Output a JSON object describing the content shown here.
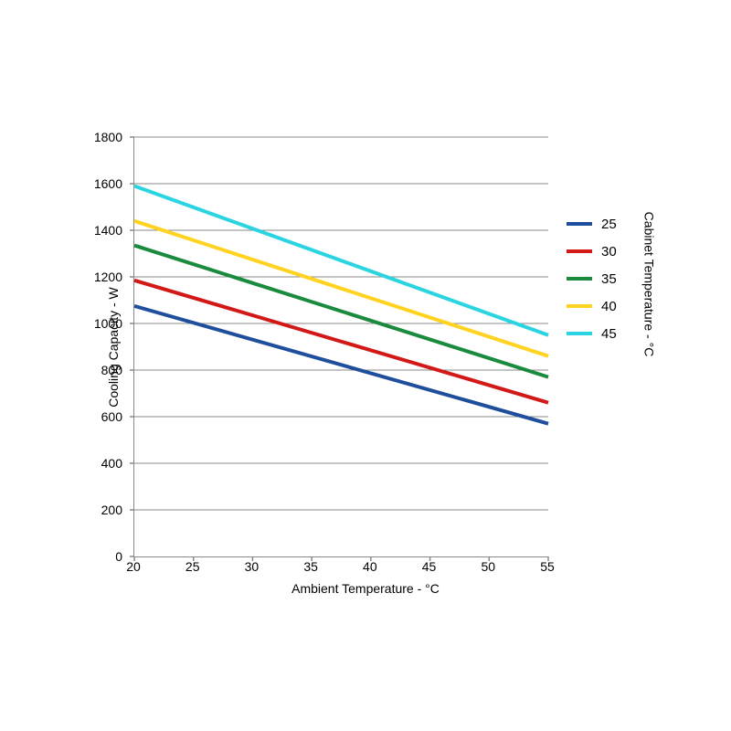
{
  "chart": {
    "type": "line",
    "background_color": "#ffffff",
    "plot_background": "#ffffff",
    "grid_color": "#888888",
    "axis_color": "#888888",
    "tick_font_size": 14,
    "label_font_size": 14,
    "legend_font_size": 15,
    "line_width": 4,
    "x": {
      "label": "Ambient Temperature - °C",
      "min": 20,
      "max": 55,
      "tick_step": 5,
      "ticks": [
        "20",
        "25",
        "30",
        "35",
        "40",
        "45",
        "50",
        "55"
      ]
    },
    "y": {
      "label": "Cooling Capacity - W",
      "min": 0,
      "max": 1800,
      "tick_step": 200,
      "ticks": [
        "0",
        "200",
        "400",
        "600",
        "800",
        "1000",
        "1200",
        "1400",
        "1600",
        "1800"
      ]
    },
    "y2": {
      "label": "Cabinet Temperature - °C"
    },
    "series": [
      {
        "name": "25",
        "color": "#1f4e9c",
        "x": [
          20,
          55
        ],
        "y": [
          1075,
          570
        ]
      },
      {
        "name": "30",
        "color": "#d31818",
        "x": [
          20,
          55
        ],
        "y": [
          1185,
          660
        ]
      },
      {
        "name": "35",
        "color": "#1a8a3c",
        "x": [
          20,
          55
        ],
        "y": [
          1335,
          770
        ]
      },
      {
        "name": "40",
        "color": "#ffd320",
        "x": [
          20,
          55
        ],
        "y": [
          1440,
          860
        ]
      },
      {
        "name": "45",
        "color": "#2ad4e0",
        "x": [
          20,
          55
        ],
        "y": [
          1590,
          950
        ]
      }
    ],
    "legend_labels": [
      "25",
      "30",
      "35",
      "40",
      "45"
    ]
  }
}
